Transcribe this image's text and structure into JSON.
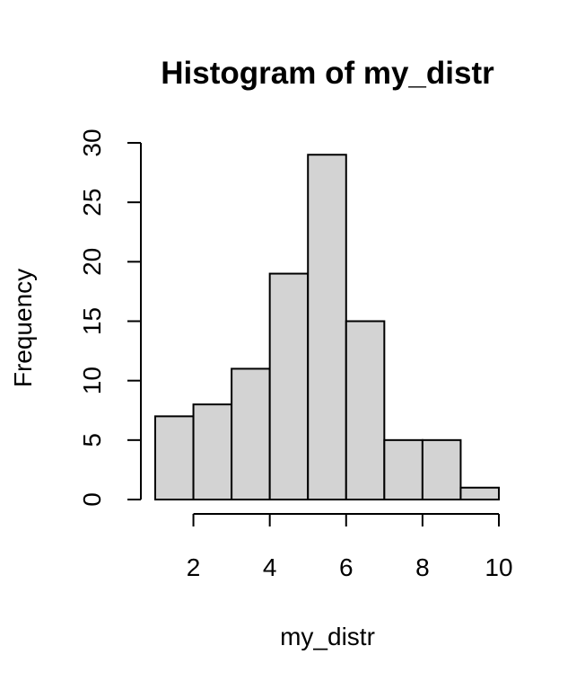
{
  "chart_data": {
    "type": "bar",
    "title": "Histogram of my_distr",
    "xlabel": "my_distr",
    "ylabel": "Frequency",
    "bins": [
      {
        "from": 1,
        "to": 2,
        "count": 7
      },
      {
        "from": 2,
        "to": 3,
        "count": 8
      },
      {
        "from": 3,
        "to": 4,
        "count": 11
      },
      {
        "from": 4,
        "to": 5,
        "count": 19
      },
      {
        "from": 5,
        "to": 6,
        "count": 29
      },
      {
        "from": 6,
        "to": 7,
        "count": 15
      },
      {
        "from": 7,
        "to": 8,
        "count": 5
      },
      {
        "from": 8,
        "to": 9,
        "count": 5
      },
      {
        "from": 9,
        "to": 10,
        "count": 1
      }
    ],
    "xticks": [
      2,
      4,
      6,
      8,
      10
    ],
    "xtick_labels": [
      "2",
      "4",
      "6",
      "8",
      "10"
    ],
    "yticks": [
      0,
      5,
      10,
      15,
      20,
      25,
      30
    ],
    "ytick_labels": [
      "0",
      "5",
      "10",
      "15",
      "20",
      "25",
      "30"
    ],
    "xlim": [
      1,
      10
    ],
    "ylim": [
      0,
      30
    ],
    "grid": false,
    "bar_color": "#d3d3d3",
    "edge_color": "#000000"
  }
}
